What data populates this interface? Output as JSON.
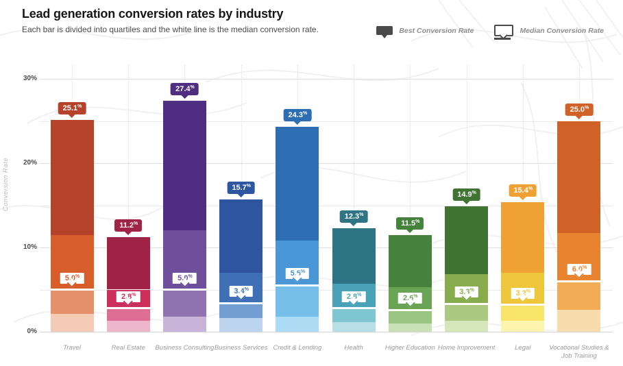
{
  "chart_data": {
    "type": "bar",
    "subtype": "quartile-stacked-columns",
    "title": "Lead generation conversion rates by industry",
    "subtitle": "Each bar is divided into quartiles and the white line is the median conversion rate.",
    "ylabel": "Conversion Rate",
    "ylim": [
      0,
      30
    ],
    "ytick_values": [
      0,
      10,
      20,
      30
    ],
    "ytick_labels": [
      "0%",
      "10%",
      "20%",
      "30%"
    ],
    "grid": "horizontal lines every 5%, faint dotted vertical line at each bar center",
    "legend_position": "top-right",
    "legend": [
      {
        "label": "Best Conversion Rate",
        "icon": "filled-flag-marker",
        "color": "#4a4a4a"
      },
      {
        "label": "Median Conversion Rate",
        "icon": "outlined-flag-marker-with-line",
        "color": "#4a4a4a"
      }
    ],
    "categories": [
      "Travel",
      "Real Estate",
      "Business Consulting",
      "Business Services",
      "Credit & Lending",
      "Health",
      "Higher Education",
      "Home Improvement",
      "Legal",
      "Vocational Studies & Job Training"
    ],
    "series": [
      {
        "category": "Travel",
        "best": 25.1,
        "q3": 11.5,
        "median": 5.0,
        "q1": 2.1,
        "colors": {
          "dark": "#b5432c",
          "medium": "#d75d2b",
          "light": "#e5916b",
          "lightest": "#f4cbb4"
        }
      },
      {
        "category": "Real Estate",
        "best": 11.2,
        "q3": 5.0,
        "median": 2.8,
        "q1": 1.3,
        "colors": {
          "dark": "#9f2347",
          "medium": "#cc2e5c",
          "light": "#dd6d92",
          "lightest": "#edb6cb"
        }
      },
      {
        "category": "Business Consulting",
        "best": 27.4,
        "q3": 12.0,
        "median": 5.0,
        "q1": 1.8,
        "colors": {
          "dark": "#4f2d80",
          "medium": "#6f4f9c",
          "light": "#8f72b0",
          "lightest": "#c8b4d8"
        }
      },
      {
        "category": "Business Services",
        "best": 15.7,
        "q3": 7.0,
        "median": 3.4,
        "q1": 1.6,
        "colors": {
          "dark": "#2d55a0",
          "medium": "#3f70b6",
          "light": "#739ed4",
          "lightest": "#bcd4ee"
        }
      },
      {
        "category": "Credit & Lending",
        "best": 24.3,
        "q3": 10.8,
        "median": 5.5,
        "q1": 1.8,
        "colors": {
          "dark": "#2d6db4",
          "medium": "#4a96d6",
          "light": "#74bee9",
          "lightest": "#aedbf4"
        }
      },
      {
        "category": "Health",
        "best": 12.3,
        "q3": 5.7,
        "median": 2.8,
        "q1": 1.1,
        "colors": {
          "dark": "#2e7485",
          "medium": "#4aa2b8",
          "light": "#7fc6d2",
          "lightest": "#b8dfe6"
        }
      },
      {
        "category": "Higher Education",
        "best": 11.5,
        "q3": 5.3,
        "median": 2.6,
        "q1": 1.0,
        "colors": {
          "dark": "#47823d",
          "medium": "#69a455",
          "light": "#99c481",
          "lightest": "#cae1b8"
        }
      },
      {
        "category": "Home Improvement",
        "best": 14.9,
        "q3": 6.8,
        "median": 3.3,
        "q1": 1.3,
        "colors": {
          "dark": "#3f7433",
          "medium": "#86ac4e",
          "light": "#abc980",
          "lightest": "#d6e6bb"
        }
      },
      {
        "category": "Legal",
        "best": 15.4,
        "q3": 7.0,
        "median": 3.2,
        "q1": 1.3,
        "colors": {
          "dark": "#efa233",
          "medium": "#eec63c",
          "light": "#f7e468",
          "lightest": "#fdf5af"
        }
      },
      {
        "category": "Vocational Studies & Job Training",
        "best": 25.0,
        "q3": 11.7,
        "median": 6.0,
        "q1": 2.6,
        "colors": {
          "dark": "#d06127",
          "medium": "#e8842f",
          "light": "#f2ac56",
          "lightest": "#f9dcae"
        }
      }
    ],
    "value_suffix": "%"
  }
}
